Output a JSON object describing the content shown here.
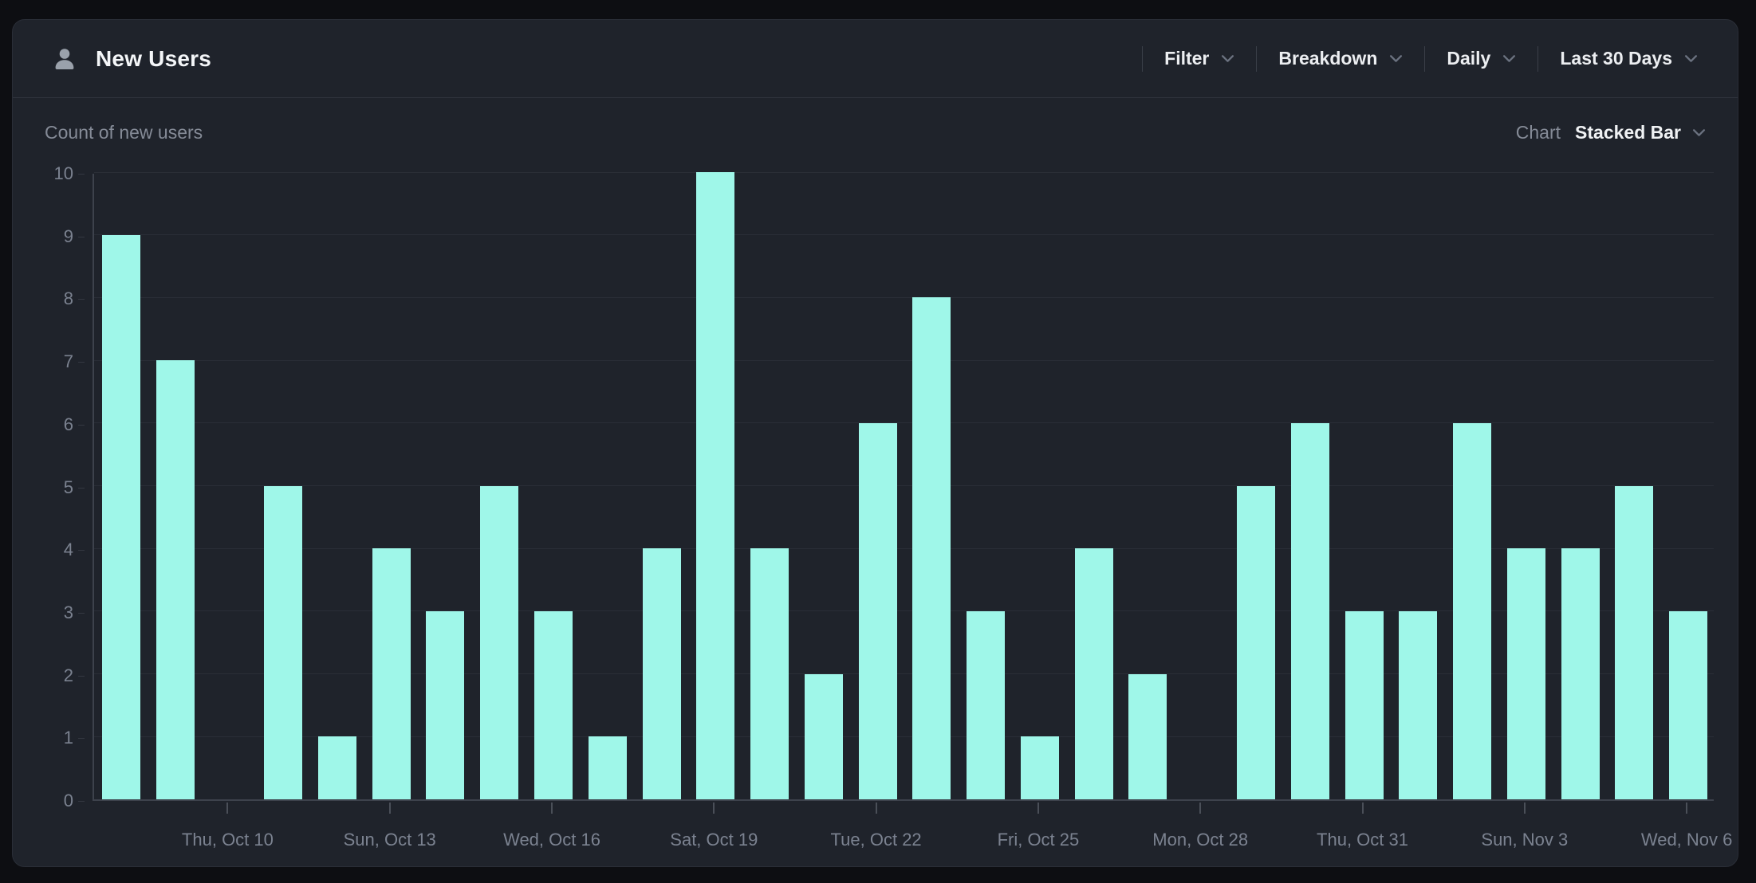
{
  "header": {
    "title": "New Users",
    "toolbar": {
      "filter_label": "Filter",
      "breakdown_label": "Breakdown",
      "granularity_label": "Daily",
      "date_range_label": "Last 30 Days"
    }
  },
  "subheader": {
    "left_label": "Count of new users",
    "chart_label": "Chart",
    "chart_type_value": "Stacked Bar"
  },
  "colors": {
    "bar": "#9ff7e9",
    "card_bg": "#1f232b",
    "page_bg": "#0d0e12",
    "muted_text": "#858b97",
    "axis_text": "#7b8290"
  },
  "chart_data": {
    "type": "bar",
    "title": "Count of new users",
    "values": [
      9,
      7,
      0,
      5,
      1,
      4,
      3,
      5,
      3,
      1,
      4,
      10,
      4,
      2,
      6,
      8,
      3,
      1,
      4,
      2,
      0,
      5,
      6,
      3,
      3,
      6,
      4,
      4,
      5,
      3
    ],
    "x_tick_labels": [
      {
        "index": 2,
        "label": "Thu, Oct 10"
      },
      {
        "index": 5,
        "label": "Sun, Oct 13"
      },
      {
        "index": 8,
        "label": "Wed, Oct 16"
      },
      {
        "index": 11,
        "label": "Sat, Oct 19"
      },
      {
        "index": 14,
        "label": "Tue, Oct 22"
      },
      {
        "index": 17,
        "label": "Fri, Oct 25"
      },
      {
        "index": 20,
        "label": "Mon, Oct 28"
      },
      {
        "index": 23,
        "label": "Thu, Oct 31"
      },
      {
        "index": 26,
        "label": "Sun, Nov 3"
      },
      {
        "index": 29,
        "label": "Wed, Nov 6"
      }
    ],
    "y_ticks": [
      0,
      1,
      2,
      3,
      4,
      5,
      6,
      7,
      8,
      9,
      10
    ],
    "ylim": [
      0,
      10
    ],
    "grid": true,
    "legend_position": "none"
  }
}
